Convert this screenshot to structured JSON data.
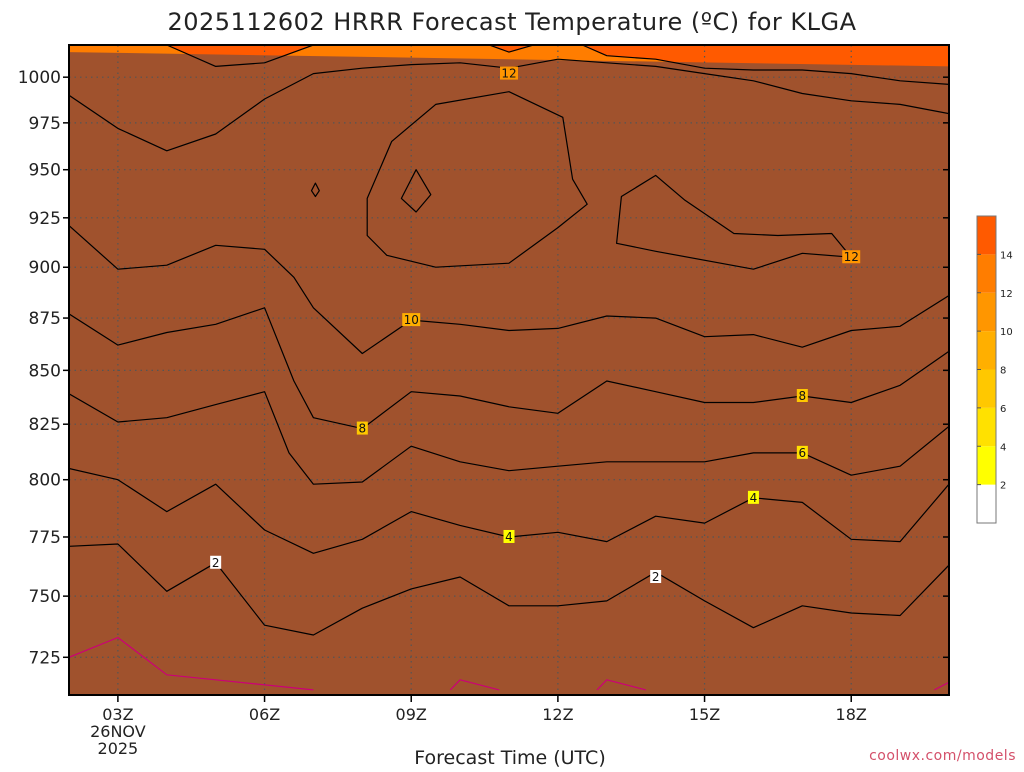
{
  "chart_data": {
    "type": "heatmap",
    "title": "2025112602 HRRR Forecast Temperature (ºC) for KLGA",
    "xlabel": "Forecast Time (UTC)",
    "ylabel": "",
    "credit": "coolwx.com/models",
    "x_ticks": [
      {
        "hour": 3,
        "label": "03Z",
        "sub": [
          "26NOV",
          "2025"
        ]
      },
      {
        "hour": 6,
        "label": "06Z"
      },
      {
        "hour": 9,
        "label": "09Z"
      },
      {
        "hour": 12,
        "label": "12Z"
      },
      {
        "hour": 15,
        "label": "15Z"
      },
      {
        "hour": 18,
        "label": "18Z"
      }
    ],
    "xlim": [
      2,
      20
    ],
    "y_ticks": [
      725,
      750,
      775,
      800,
      825,
      850,
      875,
      900,
      925,
      950,
      975,
      1000
    ],
    "ylim_hpa": [
      1018,
      710
    ],
    "grid": true,
    "colorbar": {
      "ticks": [
        2,
        4,
        6,
        8,
        10,
        12,
        14
      ],
      "bands": [
        {
          "from": 0,
          "to": 2,
          "color": "#ffffff"
        },
        {
          "from": 2,
          "to": 4,
          "color": "#ffff00"
        },
        {
          "from": 4,
          "to": 6,
          "color": "#ffe100"
        },
        {
          "from": 6,
          "to": 8,
          "color": "#ffc800"
        },
        {
          "from": 8,
          "to": 10,
          "color": "#ffaf00"
        },
        {
          "from": 10,
          "to": 12,
          "color": "#ff9600"
        },
        {
          "from": 12,
          "to": 14,
          "color": "#ff7d00"
        },
        {
          "from": 14,
          "to": 16,
          "color": "#ff5a00"
        }
      ]
    },
    "isotherms": [
      {
        "level": 0,
        "color": "#cc0077",
        "points": [
          [
            2,
            725
          ],
          [
            3,
            733
          ],
          [
            4,
            718
          ],
          [
            5,
            716
          ],
          [
            7,
            712
          ]
        ]
      },
      {
        "level": 0,
        "color": "#cc0077",
        "points": [
          [
            9.8,
            712
          ],
          [
            10,
            716
          ],
          [
            10.8,
            712
          ]
        ]
      },
      {
        "level": 0,
        "color": "#cc0077",
        "points": [
          [
            12.8,
            712
          ],
          [
            13,
            716
          ],
          [
            13.8,
            712
          ]
        ]
      },
      {
        "level": 0,
        "color": "#cc0077",
        "points": [
          [
            19.7,
            712
          ],
          [
            20,
            715
          ]
        ]
      },
      {
        "level": 2,
        "color": "#000000",
        "points": [
          [
            2,
            771
          ],
          [
            3,
            772
          ],
          [
            4,
            752
          ],
          [
            5,
            764
          ],
          [
            6,
            738
          ],
          [
            7,
            734
          ],
          [
            8,
            745
          ],
          [
            9,
            753
          ],
          [
            10,
            758
          ],
          [
            11,
            746
          ],
          [
            12,
            746
          ],
          [
            13,
            748
          ],
          [
            14,
            760
          ],
          [
            15,
            748
          ],
          [
            16,
            737
          ],
          [
            17,
            746
          ],
          [
            18,
            743
          ],
          [
            19,
            742
          ],
          [
            20,
            763
          ]
        ]
      },
      {
        "level": 4,
        "color": "#000000",
        "points": [
          [
            2,
            805
          ],
          [
            3,
            800
          ],
          [
            4,
            786
          ],
          [
            5,
            798
          ],
          [
            6,
            778
          ],
          [
            7,
            768
          ],
          [
            8,
            774
          ],
          [
            9,
            786
          ],
          [
            10,
            780
          ],
          [
            11,
            775
          ],
          [
            12,
            777
          ],
          [
            13,
            773
          ],
          [
            14,
            784
          ],
          [
            15,
            781
          ],
          [
            16,
            792
          ],
          [
            17,
            790
          ],
          [
            18,
            774
          ],
          [
            19,
            773
          ],
          [
            20,
            798
          ]
        ]
      },
      {
        "level": 6,
        "color": "#000000",
        "points": [
          [
            2,
            839
          ],
          [
            3,
            826
          ],
          [
            4,
            828
          ],
          [
            5,
            834
          ],
          [
            6,
            840
          ],
          [
            6.5,
            812
          ],
          [
            7,
            798
          ],
          [
            8,
            799
          ],
          [
            9,
            815
          ],
          [
            10,
            808
          ],
          [
            11,
            804
          ],
          [
            12,
            806
          ],
          [
            13,
            808
          ],
          [
            14,
            808
          ],
          [
            15,
            808
          ],
          [
            16,
            812
          ],
          [
            17,
            812
          ],
          [
            18,
            802
          ],
          [
            19,
            806
          ],
          [
            20,
            824
          ]
        ]
      },
      {
        "level": 8,
        "color": "#000000",
        "points": [
          [
            2,
            877
          ],
          [
            3,
            862
          ],
          [
            4,
            868
          ],
          [
            5,
            872
          ],
          [
            6,
            880
          ],
          [
            6.6,
            845
          ],
          [
            7,
            828
          ],
          [
            8,
            823
          ],
          [
            9,
            840
          ],
          [
            10,
            838
          ],
          [
            11,
            833
          ],
          [
            12,
            830
          ],
          [
            13,
            845
          ],
          [
            14,
            840
          ],
          [
            15,
            835
          ],
          [
            16,
            835
          ],
          [
            17,
            838
          ],
          [
            18,
            835
          ],
          [
            19,
            843
          ],
          [
            20,
            859
          ]
        ]
      },
      {
        "level": 10,
        "color": "#000000",
        "points": [
          [
            2,
            921
          ],
          [
            3,
            899
          ],
          [
            4,
            901
          ],
          [
            5,
            911
          ],
          [
            6,
            909
          ],
          [
            6.6,
            895
          ],
          [
            7,
            880
          ],
          [
            8,
            858
          ],
          [
            9,
            874
          ],
          [
            10,
            872
          ],
          [
            11,
            869
          ],
          [
            12,
            870
          ],
          [
            13,
            876
          ],
          [
            14,
            875
          ],
          [
            15,
            866
          ],
          [
            16,
            867
          ],
          [
            17,
            861
          ],
          [
            18,
            869
          ],
          [
            19,
            871
          ],
          [
            20,
            886
          ]
        ]
      },
      {
        "level": 12,
        "color": "#000000",
        "points": [
          [
            2,
            990
          ],
          [
            3,
            972
          ],
          [
            4,
            960
          ],
          [
            5,
            969
          ],
          [
            6,
            988
          ],
          [
            7,
            1002
          ],
          [
            8,
            1005
          ],
          [
            9,
            1007
          ],
          [
            10,
            1008
          ],
          [
            11,
            1005
          ],
          [
            12,
            1010
          ],
          [
            13,
            1008
          ],
          [
            14,
            1006
          ],
          [
            15,
            1002
          ],
          [
            16,
            998
          ],
          [
            17,
            991
          ],
          [
            18,
            987
          ],
          [
            19,
            985
          ],
          [
            20,
            980
          ]
        ]
      },
      {
        "level": 12,
        "color": "#000000",
        "closed": true,
        "points": [
          [
            8.1,
            916
          ],
          [
            8.5,
            906
          ],
          [
            9.5,
            900
          ],
          [
            11,
            902
          ],
          [
            12,
            920
          ],
          [
            12.6,
            932
          ],
          [
            12.3,
            945
          ],
          [
            12.1,
            978
          ],
          [
            11,
            992
          ],
          [
            9.5,
            985
          ],
          [
            8.6,
            965
          ],
          [
            8.1,
            935
          ]
        ]
      },
      {
        "level": 12,
        "color": "#000000",
        "closed": true,
        "points": [
          [
            13.2,
            912
          ],
          [
            14,
            908
          ],
          [
            16,
            899
          ],
          [
            17,
            907
          ],
          [
            18,
            905
          ],
          [
            17.6,
            917
          ],
          [
            16.5,
            916
          ],
          [
            15.6,
            917
          ],
          [
            14.6,
            934
          ],
          [
            14,
            947
          ],
          [
            13.3,
            936
          ]
        ]
      },
      {
        "level": 14,
        "color": "#000000",
        "closed": true,
        "points": [
          [
            8.8,
            935
          ],
          [
            9.1,
            928
          ],
          [
            9.4,
            937
          ],
          [
            9.1,
            950
          ]
        ]
      },
      {
        "level": 14,
        "color": "#000000",
        "closed": true,
        "points": [
          [
            7.04,
            936
          ],
          [
            7.12,
            939
          ],
          [
            7.04,
            943
          ],
          [
            6.96,
            939
          ]
        ]
      },
      {
        "level": 14,
        "color": "#000000",
        "points": [
          [
            4,
            1018
          ],
          [
            5,
            1006
          ],
          [
            6,
            1008
          ],
          [
            7,
            1018
          ]
        ]
      },
      {
        "level": 14,
        "color": "#000000",
        "points": [
          [
            10.6,
            1018
          ],
          [
            11,
            1014
          ],
          [
            11.5,
            1018
          ]
        ]
      },
      {
        "level": 14,
        "color": "#000000",
        "points": [
          [
            12.5,
            1018
          ],
          [
            13,
            1012
          ],
          [
            14,
            1010
          ],
          [
            15,
            1005
          ],
          [
            16,
            1004
          ],
          [
            17,
            1004
          ],
          [
            18,
            1002
          ],
          [
            19,
            998
          ],
          [
            20,
            996
          ]
        ]
      }
    ],
    "contour_labels": [
      {
        "text": "2",
        "x": 5,
        "y": 764
      },
      {
        "text": "2",
        "x": 14,
        "y": 758
      },
      {
        "text": "4",
        "x": 11,
        "y": 775
      },
      {
        "text": "4",
        "x": 16,
        "y": 792
      },
      {
        "text": "6",
        "x": 17,
        "y": 812
      },
      {
        "text": "8",
        "x": 8,
        "y": 823
      },
      {
        "text": "8",
        "x": 17,
        "y": 838
      },
      {
        "text": "10",
        "x": 9,
        "y": 874
      },
      {
        "text": "12",
        "x": 18,
        "y": 905
      },
      {
        "text": "12",
        "x": 11,
        "y": 1002
      }
    ],
    "ground": {
      "color": "#a0522d",
      "top_hpa": [
        [
          2,
          1014
        ],
        [
          20,
          1006
        ]
      ]
    }
  }
}
